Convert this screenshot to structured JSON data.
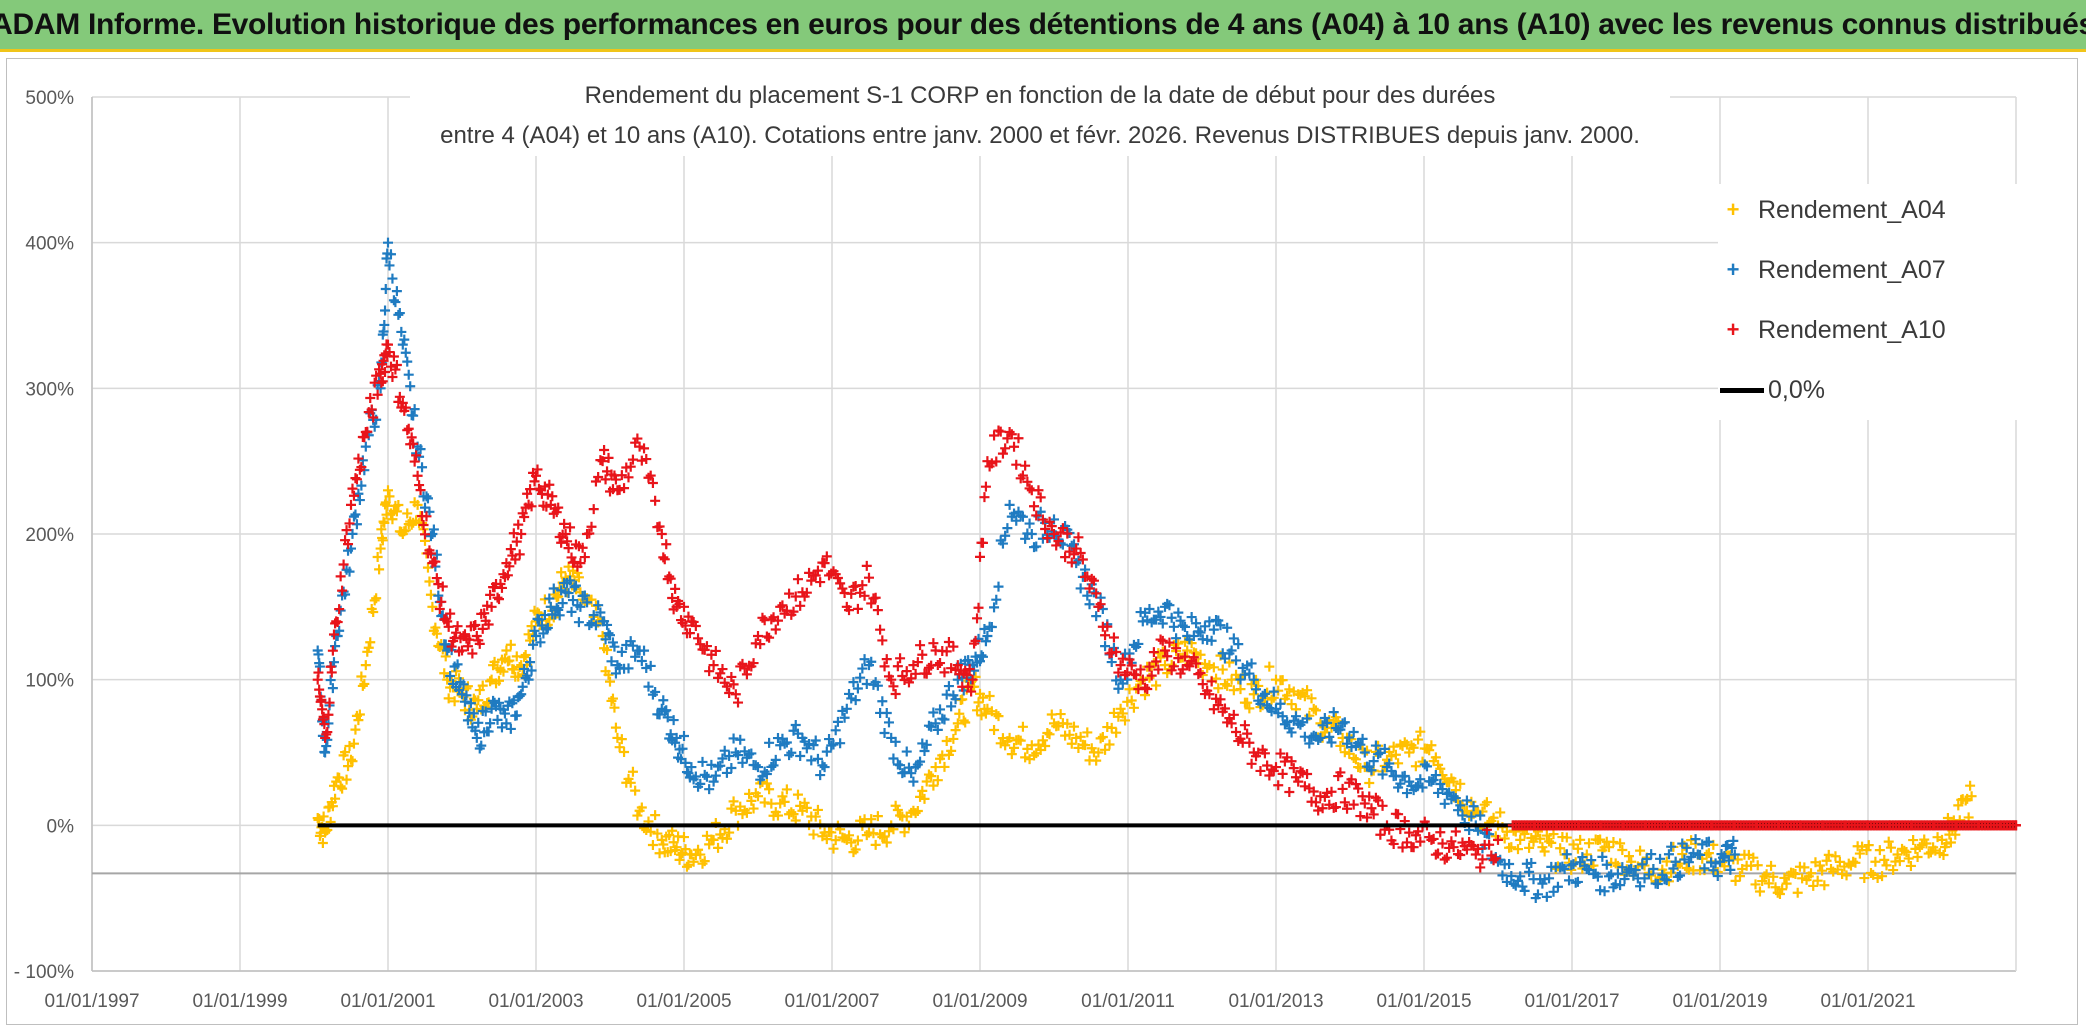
{
  "header": {
    "title": "ADAM Informe. Evolution historique des performances en euros pour des détentions de 4 ans (A04) à 10 ans (A10) avec les revenus connus distribués"
  },
  "chart_data": {
    "type": "scatter",
    "title_line1": "Rendement du placement S-1 CORP en fonction de la date de début pour des durées",
    "title_line2": "entre 4 (A04) et 10 ans (A10). Cotations entre janv. 2000 et févr. 2026. Revenus DISTRIBUES depuis janv. 2000.",
    "x_tick_labels": [
      "01/01/1997",
      "01/01/1999",
      "01/01/2001",
      "01/01/2003",
      "01/01/2005",
      "01/01/2007",
      "01/01/2009",
      "01/01/2011",
      "01/01/2013",
      "01/01/2015",
      "01/01/2017",
      "01/01/2019",
      "01/01/2021"
    ],
    "x_range_years": [
      1997.0,
      2023.0
    ],
    "y_tick_labels": [
      "- 100%",
      "0%",
      "100%",
      "200%",
      "300%",
      "400%",
      "500%"
    ],
    "y_ticks": [
      -100,
      0,
      100,
      200,
      300,
      400,
      500
    ],
    "ylim": [
      -100,
      500
    ],
    "reference_line_y": -33,
    "series": [
      {
        "name": "Rendement_A04",
        "color": "#ffc000",
        "x": [
          2000.05,
          2000.15,
          2000.3,
          2000.5,
          2000.7,
          2000.9,
          2001.0,
          2001.2,
          2001.4,
          2001.6,
          2001.8,
          2002.0,
          2002.2,
          2002.4,
          2002.6,
          2002.8,
          2003.0,
          2003.2,
          2003.4,
          2003.6,
          2003.9,
          2004.1,
          2004.4,
          2004.7,
          2004.9,
          2005.1,
          2005.4,
          2005.7,
          2006.0,
          2006.3,
          2006.6,
          2006.9,
          2007.2,
          2007.5,
          2007.8,
          2008.1,
          2008.4,
          2008.7,
          2008.9,
          2009.1,
          2009.4,
          2009.7,
          2010.0,
          2010.3,
          2010.6,
          2010.9,
          2011.2,
          2011.5,
          2011.8,
          2012.1,
          2012.4,
          2012.7,
          2013.0,
          2013.3,
          2013.6,
          2013.9,
          2014.2,
          2014.5,
          2014.8,
          2015.1,
          2015.4,
          2015.7,
          2016.0,
          2016.3,
          2016.6,
          2016.9,
          2017.2,
          2017.5,
          2017.8,
          2018.1,
          2018.4,
          2018.7,
          2019.0,
          2019.3,
          2019.6,
          2019.9,
          2020.2,
          2020.5,
          2020.8,
          2021.1,
          2021.4,
          2021.7,
          2022.0,
          2022.2,
          2022.4
        ],
        "values": [
          5,
          -5,
          30,
          45,
          110,
          190,
          230,
          200,
          220,
          150,
          100,
          90,
          80,
          100,
          120,
          110,
          140,
          150,
          170,
          160,
          130,
          60,
          10,
          -10,
          -15,
          -20,
          -10,
          10,
          20,
          15,
          10,
          -5,
          -10,
          -5,
          0,
          10,
          40,
          70,
          95,
          80,
          60,
          55,
          70,
          60,
          50,
          80,
          100,
          110,
          120,
          110,
          100,
          90,
          100,
          90,
          70,
          60,
          40,
          45,
          50,
          55,
          30,
          10,
          0,
          -10,
          -15,
          -20,
          -20,
          -15,
          -25,
          -30,
          -25,
          -20,
          -25,
          -30,
          -35,
          -40,
          -35,
          -30,
          -25,
          -25,
          -20,
          -15,
          -10,
          0,
          20
        ]
      },
      {
        "name": "Rendement_A07",
        "color": "#1f7bc1",
        "x": [
          2000.05,
          2000.15,
          2000.3,
          2000.5,
          2000.7,
          2000.9,
          2001.0,
          2001.2,
          2001.4,
          2001.6,
          2001.8,
          2002.0,
          2002.2,
          2002.4,
          2002.6,
          2002.8,
          2003.0,
          2003.2,
          2003.4,
          2003.6,
          2003.9,
          2004.1,
          2004.4,
          2004.7,
          2004.9,
          2005.1,
          2005.4,
          2005.7,
          2006.0,
          2006.3,
          2006.6,
          2006.9,
          2007.2,
          2007.5,
          2007.8,
          2008.1,
          2008.4,
          2008.7,
          2008.9,
          2009.1,
          2009.4,
          2009.7,
          2010.0,
          2010.3,
          2010.6,
          2010.9,
          2011.2,
          2011.5,
          2011.8,
          2012.1,
          2012.4,
          2012.7,
          2013.0,
          2013.3,
          2013.6,
          2013.9,
          2014.2,
          2014.5,
          2014.8,
          2015.1,
          2015.4,
          2015.7,
          2016.0,
          2016.3,
          2016.6,
          2016.9,
          2017.2,
          2017.5,
          2017.8,
          2018.1,
          2018.4,
          2018.7,
          2019.0,
          2019.2
        ],
        "values": [
          120,
          50,
          130,
          190,
          260,
          300,
          400,
          330,
          260,
          200,
          120,
          90,
          60,
          80,
          70,
          90,
          130,
          150,
          160,
          150,
          140,
          110,
          120,
          80,
          60,
          40,
          30,
          50,
          40,
          55,
          60,
          40,
          80,
          110,
          60,
          30,
          70,
          100,
          110,
          130,
          220,
          200,
          210,
          180,
          150,
          100,
          140,
          150,
          130,
          140,
          120,
          100,
          80,
          70,
          60,
          70,
          50,
          40,
          30,
          30,
          20,
          0,
          -25,
          -35,
          -40,
          -30,
          -30,
          -35,
          -30,
          -30,
          -25,
          -20,
          -25,
          -20
        ]
      },
      {
        "name": "Rendement_A10",
        "color": "#e8141a",
        "x": [
          2000.05,
          2000.15,
          2000.3,
          2000.5,
          2000.7,
          2000.9,
          2001.0,
          2001.2,
          2001.4,
          2001.6,
          2001.8,
          2002.0,
          2002.2,
          2002.4,
          2002.6,
          2002.8,
          2003.0,
          2003.2,
          2003.4,
          2003.6,
          2003.9,
          2004.1,
          2004.4,
          2004.7,
          2004.9,
          2005.1,
          2005.4,
          2005.7,
          2006.0,
          2006.3,
          2006.6,
          2006.9,
          2007.2,
          2007.5,
          2007.8,
          2008.1,
          2008.4,
          2008.7,
          2008.9,
          2009.1,
          2009.4,
          2009.7,
          2010.0,
          2010.3,
          2010.6,
          2010.9,
          2011.2,
          2011.5,
          2011.8,
          2012.1,
          2012.4,
          2012.7,
          2013.0,
          2013.3,
          2013.6,
          2013.9,
          2014.2,
          2014.5,
          2014.8,
          2015.1,
          2015.4,
          2015.7,
          2016.0
        ],
        "values": [
          100,
          60,
          140,
          220,
          270,
          310,
          330,
          290,
          240,
          180,
          140,
          120,
          130,
          150,
          180,
          200,
          240,
          220,
          200,
          180,
          250,
          230,
          260,
          200,
          150,
          140,
          110,
          90,
          130,
          150,
          160,
          180,
          150,
          170,
          100,
          110,
          120,
          110,
          100,
          250,
          270,
          230,
          200,
          190,
          150,
          110,
          100,
          120,
          110,
          90,
          70,
          50,
          40,
          30,
          20,
          25,
          15,
          0,
          -5,
          -10,
          -15,
          -20,
          -10
        ]
      },
      {
        "name": "Rendement_A10 (flat)",
        "color": "#e8141a",
        "x": [
          2016.2,
          2016.5,
          2016.8,
          2017.1,
          2017.4,
          2017.7,
          2018.0,
          2018.3,
          2018.6,
          2018.9,
          2019.2,
          2019.5,
          2019.8,
          2020.1,
          2020.4,
          2020.7,
          2021.0,
          2021.3,
          2021.6,
          2021.9,
          2022.2,
          2022.5,
          2022.8,
          2023.0
        ],
        "values": [
          0,
          0,
          0,
          0,
          0,
          0,
          0,
          0,
          0,
          0,
          0,
          0,
          0,
          0,
          0,
          0,
          0,
          0,
          0,
          0,
          0,
          0,
          0,
          0
        ]
      }
    ],
    "legend": [
      {
        "label": "Rendement_A04",
        "color": "#ffc000",
        "marker": "+"
      },
      {
        "label": "Rendement_A07",
        "color": "#1f7bc1",
        "marker": "+"
      },
      {
        "label": "Rendement_A10",
        "color": "#e8141a",
        "marker": "+"
      },
      {
        "label": "0,0%",
        "color": "#000000",
        "marker": "line"
      }
    ],
    "zero_line": {
      "label": "0,0%",
      "x_start": 2000.05,
      "x_end": 2023.0,
      "y": 0
    }
  }
}
